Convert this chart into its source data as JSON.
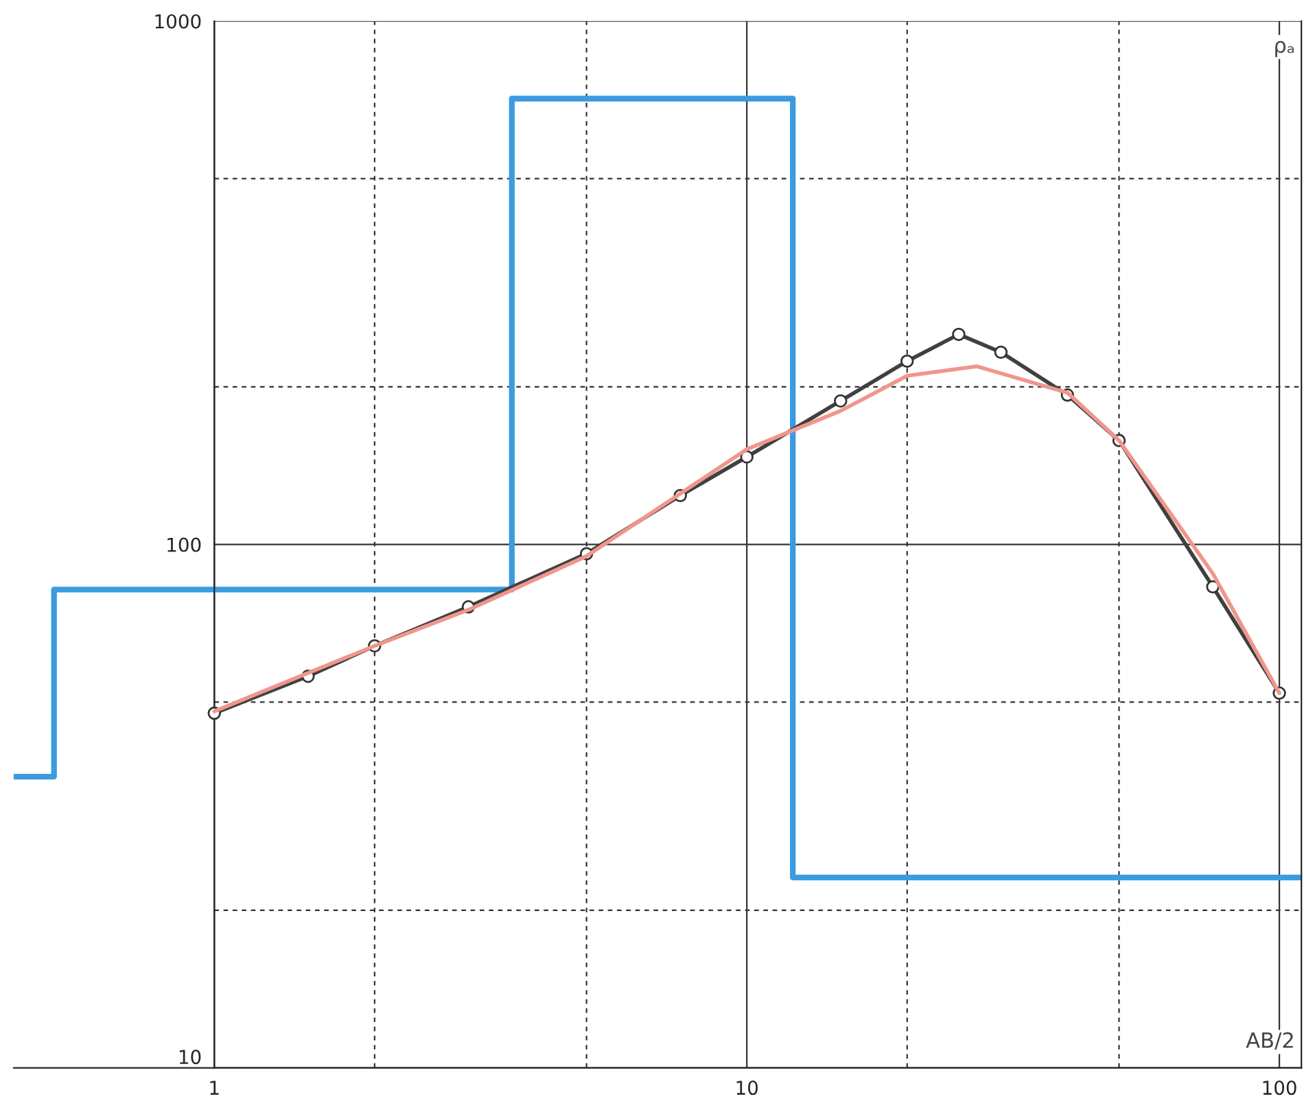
{
  "chart_data": {
    "type": "line",
    "xlabel": "AB/2",
    "ylabel": "ρₐ",
    "log": "xy",
    "xlim": [
      0.42,
      110
    ],
    "ylim": [
      10,
      1000
    ],
    "xticks": [
      1,
      {
        "value": 2,
        "label": null
      },
      {
        "value": 5,
        "label": null
      },
      10,
      {
        "value": 20,
        "label": null
      },
      {
        "value": 50,
        "label": null
      },
      100
    ],
    "yticks": [
      10,
      {
        "value": 20,
        "label": null
      },
      {
        "value": 50,
        "label": null
      },
      100,
      {
        "value": 200,
        "label": null
      },
      {
        "value": 500,
        "label": null
      },
      1000
    ],
    "grid": true,
    "series": [
      {
        "type": "step",
        "color": "#3c9be0",
        "x": [
          0.42,
          0.5,
          3.62,
          12.2,
          110
        ],
        "values": [
          36,
          82,
          711,
          23.1,
          23.1
        ],
        "marker": "none"
      },
      {
        "color": "#404040",
        "x": [
          1,
          1.5,
          2,
          3,
          5,
          7.5,
          10,
          15,
          20,
          25,
          30,
          40,
          50,
          75,
          100
        ],
        "values": [
          47.6,
          56,
          64,
          76,
          96,
          124,
          147,
          188,
          224,
          252,
          233,
          193,
          158,
          83,
          52
        ],
        "marker": "circle"
      },
      {
        "color": "#f0968c",
        "x": [
          1,
          2,
          3,
          5,
          10,
          15,
          20,
          27,
          40,
          50,
          75,
          100
        ],
        "values": [
          48,
          64,
          75,
          95,
          152,
          180,
          210,
          219,
          195,
          158,
          88,
          52
        ],
        "marker": "none"
      }
    ]
  }
}
